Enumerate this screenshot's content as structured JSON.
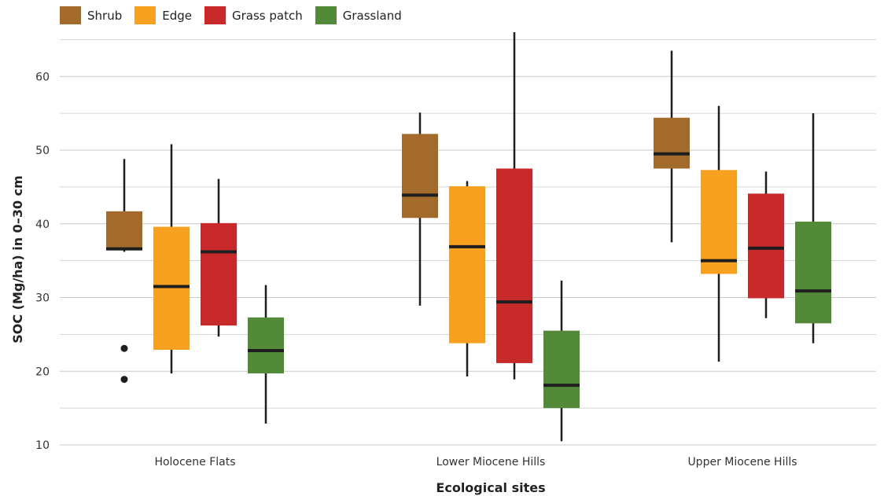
{
  "chart_data": {
    "type": "box",
    "title": "",
    "xlabel": "Ecological sites",
    "ylabel": "SOC (Mg/ha) in 0–30 cm",
    "ylim": [
      10,
      66
    ],
    "yticks": [
      10,
      20,
      30,
      40,
      50,
      60
    ],
    "grid": true,
    "legend_position": "top-left",
    "categories": [
      "Holocene Flats",
      "Lower Miocene Hills",
      "Upper Miocene Hills"
    ],
    "series": [
      {
        "name": "Shrub",
        "color": "#a36b2b",
        "boxes": [
          {
            "min": 36.2,
            "q1": 36.4,
            "median": 36.6,
            "q3": 41.7,
            "max": 48.8,
            "outliers": [
              23.1,
              18.9
            ]
          },
          {
            "min": 28.9,
            "q1": 40.8,
            "median": 43.9,
            "q3": 52.2,
            "max": 55.1,
            "outliers": []
          },
          {
            "min": 37.5,
            "q1": 47.5,
            "median": 49.5,
            "q3": 54.4,
            "max": 63.5,
            "outliers": []
          }
        ]
      },
      {
        "name": "Edge",
        "color": "#f8a020",
        "boxes": [
          {
            "min": 19.7,
            "q1": 22.9,
            "median": 31.5,
            "q3": 39.6,
            "max": 50.8,
            "outliers": []
          },
          {
            "min": 19.3,
            "q1": 23.8,
            "median": 36.9,
            "q3": 45.1,
            "max": 45.8,
            "outliers": []
          },
          {
            "min": 21.3,
            "q1": 33.2,
            "median": 35.0,
            "q3": 47.3,
            "max": 56.0,
            "outliers": []
          }
        ]
      },
      {
        "name": "Grass patch",
        "color": "#c8292b",
        "boxes": [
          {
            "min": 24.7,
            "q1": 26.2,
            "median": 36.2,
            "q3": 40.1,
            "max": 46.1,
            "outliers": []
          },
          {
            "min": 18.9,
            "q1": 21.1,
            "median": 29.4,
            "q3": 47.5,
            "max": 66.0,
            "outliers": []
          },
          {
            "min": 27.2,
            "q1": 29.9,
            "median": 36.7,
            "q3": 44.1,
            "max": 47.1,
            "outliers": []
          }
        ]
      },
      {
        "name": "Grassland",
        "color": "#528a3a",
        "boxes": [
          {
            "min": 12.9,
            "q1": 19.7,
            "median": 22.8,
            "q3": 27.3,
            "max": 31.7,
            "outliers": []
          },
          {
            "min": 10.5,
            "q1": 15.0,
            "median": 18.1,
            "q3": 25.5,
            "max": 32.3,
            "outliers": []
          },
          {
            "min": 23.8,
            "q1": 26.5,
            "median": 30.9,
            "q3": 40.3,
            "max": 55.0,
            "outliers": []
          }
        ]
      }
    ]
  }
}
